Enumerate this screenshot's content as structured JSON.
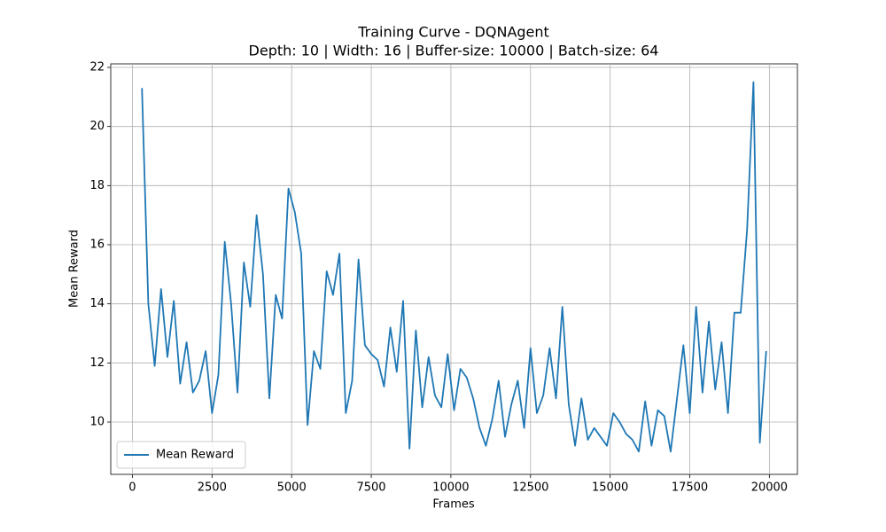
{
  "chart_data": {
    "type": "line",
    "title": "Training Curve - DQNAgent",
    "subtitle": "Depth: 10 | Width: 16 | Buffer-size: 10000 | Batch-size: 64",
    "x_label": "Frames",
    "y_label": "Mean Reward",
    "xlim": [
      -680,
      20880
    ],
    "ylim": [
      8.23,
      22.12
    ],
    "xticks": [
      0,
      2500,
      5000,
      7500,
      10000,
      12500,
      15000,
      17500,
      20000
    ],
    "yticks": [
      10,
      12,
      14,
      16,
      18,
      20,
      22
    ],
    "grid": true,
    "legend": "lower left",
    "x": [
      300,
      500,
      700,
      900,
      1100,
      1300,
      1500,
      1700,
      1900,
      2100,
      2300,
      2500,
      2700,
      2900,
      3100,
      3300,
      3500,
      3700,
      3900,
      4100,
      4300,
      4500,
      4700,
      4900,
      5100,
      5300,
      5500,
      5700,
      5900,
      6100,
      6300,
      6500,
      6700,
      6900,
      7100,
      7300,
      7500,
      7700,
      7900,
      8100,
      8300,
      8500,
      8700,
      8900,
      9100,
      9300,
      9500,
      9700,
      9900,
      10100,
      10300,
      10500,
      10700,
      10900,
      11100,
      11300,
      11500,
      11700,
      11900,
      12100,
      12300,
      12500,
      12700,
      12900,
      13100,
      13300,
      13500,
      13700,
      13900,
      14100,
      14300,
      14500,
      14700,
      14900,
      15100,
      15300,
      15500,
      15700,
      15900,
      16100,
      16300,
      16500,
      16700,
      16900,
      17100,
      17300,
      17500,
      17700,
      17900,
      18100,
      18300,
      18500,
      18700,
      18900,
      19100,
      19300,
      19500,
      19700,
      19900
    ],
    "series": [
      {
        "name": "Mean Reward",
        "color": "#1f77b4",
        "values": [
          21.3,
          14.0,
          11.9,
          14.5,
          12.2,
          14.1,
          11.3,
          12.7,
          11.0,
          11.4,
          12.4,
          10.3,
          11.6,
          16.1,
          14.0,
          11.0,
          15.4,
          13.9,
          17.0,
          15.0,
          10.8,
          14.3,
          13.5,
          17.9,
          17.1,
          15.7,
          9.9,
          12.4,
          11.8,
          15.1,
          14.3,
          15.7,
          10.3,
          11.4,
          15.5,
          12.6,
          12.3,
          12.1,
          11.2,
          13.2,
          11.7,
          14.1,
          9.1,
          13.1,
          10.5,
          12.2,
          10.9,
          10.5,
          12.3,
          10.4,
          11.8,
          11.5,
          10.8,
          9.8,
          9.2,
          10.1,
          11.4,
          9.5,
          10.6,
          11.4,
          9.8,
          12.5,
          10.3,
          10.9,
          12.5,
          10.8,
          13.9,
          10.6,
          9.2,
          10.8,
          9.4,
          9.8,
          9.5,
          9.2,
          10.3,
          10.0,
          9.6,
          9.4,
          9.0,
          10.7,
          9.2,
          10.4,
          10.2,
          9.0,
          10.8,
          12.6,
          10.3,
          13.9,
          11.0,
          13.4,
          11.1,
          12.7,
          10.3,
          13.7,
          13.7,
          16.5,
          21.5,
          9.3,
          12.4
        ]
      }
    ]
  }
}
